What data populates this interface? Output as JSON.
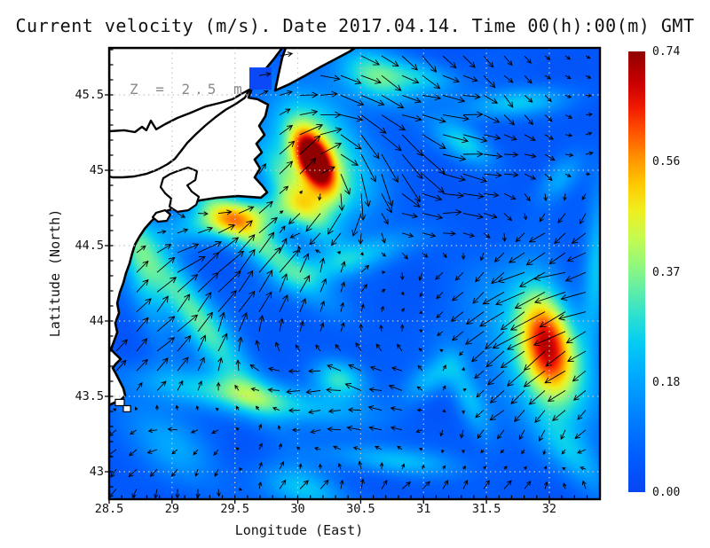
{
  "title": {
    "text": "Current velocity (m/s). Date 2017.04.14. Time 00(h):00(m) GMT"
  },
  "annotation": {
    "text": "Z = 2.5 m",
    "color": "#8a8a8a"
  },
  "axes": {
    "xlabel": "Longitude (East)",
    "ylabel": "Latitude (North)",
    "xlim": [
      28.5,
      32.4
    ],
    "ylim": [
      42.82,
      45.81
    ],
    "xtick_values": [
      28.5,
      29,
      29.5,
      30,
      30.5,
      31,
      31.5,
      32
    ],
    "xtick_labels": [
      "28.5",
      "29",
      "29.5",
      "30",
      "30.5",
      "31",
      "31.5",
      "32"
    ],
    "ytick_values": [
      43,
      43.5,
      44,
      44.5,
      45,
      45.5
    ],
    "ytick_labels": [
      "43",
      "43.5",
      "44",
      "44.5",
      "45",
      "45.5"
    ],
    "minor_tick_step": 0.1,
    "grid_style": "dotted"
  },
  "colorbar": {
    "vmin": 0.0,
    "vmax": 0.74,
    "tick_values": [
      0.74,
      0.555,
      0.37,
      0.185,
      0.0
    ],
    "tick_labels": [
      "0.74",
      "0.56",
      "0.37",
      "0.18",
      "0.00"
    ],
    "stops": [
      [
        0.0,
        "#0646f0"
      ],
      [
        0.09,
        "#0060ff"
      ],
      [
        0.18,
        "#0084ff"
      ],
      [
        0.27,
        "#00acff"
      ],
      [
        0.34,
        "#06ccf2"
      ],
      [
        0.4,
        "#2ce0d0"
      ],
      [
        0.46,
        "#62eea6"
      ],
      [
        0.52,
        "#96f878"
      ],
      [
        0.58,
        "#c8fa4e"
      ],
      [
        0.64,
        "#f0ee1e"
      ],
      [
        0.7,
        "#ffc800"
      ],
      [
        0.76,
        "#ff9000"
      ],
      [
        0.82,
        "#ff5000"
      ],
      [
        0.875,
        "#f01800"
      ],
      [
        0.93,
        "#c80000"
      ],
      [
        1.0,
        "#900000"
      ]
    ]
  },
  "colors": {
    "land": "#ffffff",
    "coast": "#000000",
    "water_patch": "#0a49f5",
    "arrow": "#000000",
    "grid": "#c8c8c8",
    "border": "#000000"
  },
  "chart_data": {
    "type": "heatmap+quiver",
    "quantity": "current speed",
    "units": "m/s",
    "depth": "2.5 m",
    "speed_base": 0.045,
    "speed_features": [
      [
        30.13,
        45.06,
        0.62,
        0.16,
        0.085,
        55
      ],
      [
        30.18,
        45.12,
        0.33,
        0.33,
        0.22,
        45
      ],
      [
        30.0,
        44.82,
        0.25,
        0.3,
        0.1,
        45
      ],
      [
        30.62,
        45.62,
        0.28,
        0.22,
        0.12,
        20
      ],
      [
        31.75,
        45.45,
        0.2,
        0.3,
        0.07,
        -5
      ],
      [
        31.0,
        45.62,
        0.18,
        0.2,
        0.08,
        10
      ],
      [
        31.32,
        45.18,
        0.22,
        0.18,
        0.08,
        25
      ],
      [
        32.08,
        44.95,
        0.15,
        0.15,
        0.08,
        -40
      ],
      [
        29.55,
        44.69,
        0.28,
        0.4,
        0.09,
        -8
      ],
      [
        29.65,
        44.55,
        0.3,
        0.5,
        0.1,
        35
      ],
      [
        29.15,
        44.08,
        0.3,
        0.55,
        0.11,
        48
      ],
      [
        29.6,
        43.5,
        0.26,
        0.6,
        0.09,
        8
      ],
      [
        30.32,
        43.62,
        0.25,
        0.15,
        0.09,
        10
      ],
      [
        31.98,
        43.87,
        0.48,
        0.28,
        0.15,
        75
      ],
      [
        31.9,
        43.75,
        0.2,
        0.45,
        0.25,
        45
      ],
      [
        28.75,
        44.3,
        0.16,
        0.35,
        0.1,
        70
      ],
      [
        30.45,
        44.42,
        0.18,
        0.35,
        0.08,
        -15
      ],
      [
        31.05,
        43.62,
        0.17,
        0.18,
        0.08,
        -30
      ],
      [
        31.35,
        43.5,
        0.17,
        0.22,
        0.08,
        60
      ],
      [
        30.75,
        43.08,
        0.19,
        0.35,
        0.07,
        5
      ],
      [
        30.05,
        42.88,
        0.19,
        0.25,
        0.1,
        15
      ],
      [
        32.38,
        44.4,
        0.2,
        0.35,
        0.08,
        -85
      ],
      [
        29.0,
        43.17,
        0.14,
        0.3,
        0.15,
        30
      ],
      [
        32.2,
        43.1,
        0.15,
        0.25,
        0.1,
        40
      ]
    ],
    "current_grid": {
      "lons": [
        28.6,
        28.975,
        29.35,
        29.725,
        30.1,
        30.475,
        30.85,
        31.225,
        31.6,
        31.975,
        32.35
      ],
      "lats": [
        45.75,
        45.39,
        45.04,
        44.68,
        44.33,
        43.97,
        43.61,
        43.26,
        42.9
      ],
      "u": [
        [
          0,
          0,
          0,
          0.15,
          0.2,
          0.22,
          0.18,
          0.15,
          0.1,
          0.06,
          0.05
        ],
        [
          0,
          0,
          0,
          0.08,
          0.22,
          0.3,
          0.25,
          0.3,
          0.12,
          0.08,
          0.06
        ],
        [
          0,
          0,
          0,
          0.02,
          0.35,
          0.1,
          0.25,
          0.28,
          0.2,
          0.12,
          0.08
        ],
        [
          0,
          0.08,
          0.15,
          0.2,
          -0.3,
          -0.1,
          0.2,
          0.25,
          0.1,
          -0.1,
          -0.12
        ],
        [
          0.1,
          0.25,
          0.3,
          0.25,
          0.05,
          0.08,
          0.0,
          -0.08,
          -0.15,
          -0.35,
          -0.28
        ],
        [
          0.12,
          0.2,
          0.1,
          0.05,
          0.08,
          0.03,
          0.02,
          -0.1,
          -0.25,
          -0.4,
          -0.25
        ],
        [
          0.1,
          0.15,
          0.05,
          -0.15,
          -0.2,
          -0.18,
          -0.15,
          0.1,
          -0.2,
          -0.2,
          -0.15
        ],
        [
          -0.1,
          -0.12,
          -0.08,
          0.05,
          -0.12,
          -0.15,
          -0.12,
          0.0,
          -0.1,
          -0.03,
          -0.12
        ],
        [
          -0.08,
          -0.02,
          0.0,
          0.03,
          0.08,
          0.02,
          0.1,
          0.03,
          0.1,
          0.02,
          -0.05
        ]
      ],
      "v": [
        [
          0,
          0,
          0,
          0.02,
          0.0,
          -0.12,
          -0.14,
          -0.15,
          -0.1,
          -0.05,
          -0.04
        ],
        [
          0,
          0,
          0,
          0.08,
          0.02,
          -0.12,
          -0.1,
          0.0,
          -0.12,
          -0.06,
          0.03
        ],
        [
          0,
          0,
          0,
          0.12,
          0.3,
          -0.45,
          -0.3,
          -0.05,
          0.0,
          -0.08,
          0.04
        ],
        [
          0,
          -0.05,
          0.03,
          0.15,
          -0.25,
          -0.25,
          -0.02,
          0.0,
          -0.08,
          -0.1,
          -0.15
        ],
        [
          0.1,
          0.2,
          0.25,
          0.3,
          0.2,
          0.1,
          -0.1,
          -0.08,
          -0.12,
          -0.15,
          -0.05
        ],
        [
          0.15,
          0.2,
          0.25,
          0.2,
          0.12,
          0.1,
          0.08,
          -0.1,
          -0.2,
          -0.25,
          -0.1
        ],
        [
          0.12,
          0.15,
          0.15,
          0.02,
          -0.02,
          0.05,
          0.05,
          0.1,
          -0.15,
          -0.18,
          -0.1
        ],
        [
          -0.08,
          0.0,
          -0.06,
          0.08,
          -0.02,
          0.0,
          0.02,
          -0.1,
          -0.1,
          -0.12,
          -0.1
        ],
        [
          -0.1,
          -0.12,
          -0.1,
          0.1,
          0.1,
          0.12,
          0.08,
          0.1,
          0.1,
          0.08,
          0.08
        ]
      ]
    },
    "coastline": {
      "land_polygons": [
        [
          [
            28.5,
            45.812
          ],
          [
            29.876,
            45.812
          ],
          [
            29.806,
            45.735
          ],
          [
            29.707,
            45.635
          ],
          [
            29.636,
            45.547
          ],
          [
            29.608,
            45.482
          ],
          [
            29.679,
            45.471
          ],
          [
            29.763,
            45.435
          ],
          [
            29.742,
            45.359
          ],
          [
            29.693,
            45.294
          ],
          [
            29.735,
            45.235
          ],
          [
            29.671,
            45.176
          ],
          [
            29.714,
            45.118
          ],
          [
            29.657,
            45.071
          ],
          [
            29.7,
            45.012
          ],
          [
            29.657,
            44.953
          ],
          [
            29.721,
            44.894
          ],
          [
            29.756,
            44.853
          ],
          [
            29.707,
            44.818
          ],
          [
            29.523,
            44.829
          ],
          [
            29.361,
            44.818
          ],
          [
            29.22,
            44.8
          ],
          [
            29.079,
            44.765
          ],
          [
            28.973,
            44.735
          ],
          [
            28.888,
            44.706
          ],
          [
            28.832,
            44.659
          ],
          [
            28.782,
            44.612
          ],
          [
            28.74,
            44.559
          ],
          [
            28.705,
            44.506
          ],
          [
            28.683,
            44.447
          ],
          [
            28.662,
            44.382
          ],
          [
            28.634,
            44.318
          ],
          [
            28.613,
            44.253
          ],
          [
            28.585,
            44.188
          ],
          [
            28.564,
            44.118
          ],
          [
            28.578,
            44.053
          ],
          [
            28.549,
            43.988
          ],
          [
            28.564,
            43.924
          ],
          [
            28.535,
            43.859
          ],
          [
            28.514,
            43.812
          ],
          [
            28.556,
            43.776
          ],
          [
            28.592,
            43.747
          ],
          [
            28.556,
            43.718
          ],
          [
            28.528,
            43.688
          ],
          [
            28.556,
            43.647
          ],
          [
            28.585,
            43.6
          ],
          [
            28.613,
            43.553
          ],
          [
            28.627,
            43.506
          ],
          [
            28.592,
            43.476
          ],
          [
            28.542,
            43.459
          ],
          [
            28.5,
            43.441
          ]
        ],
        [
          [
            29.904,
            45.812
          ],
          [
            30.455,
            45.812
          ],
          [
            30.413,
            45.788
          ],
          [
            30.307,
            45.741
          ],
          [
            30.187,
            45.688
          ],
          [
            30.06,
            45.629
          ],
          [
            29.933,
            45.571
          ],
          [
            29.82,
            45.529
          ],
          [
            29.848,
            45.641
          ],
          [
            29.876,
            45.747
          ]
        ],
        [
          [
            28.549,
            43.48
          ],
          [
            28.62,
            43.48
          ],
          [
            28.62,
            43.438
          ],
          [
            28.549,
            43.438
          ]
        ],
        [
          [
            28.613,
            43.438
          ],
          [
            28.67,
            43.438
          ],
          [
            28.67,
            43.398
          ],
          [
            28.613,
            43.398
          ]
        ]
      ],
      "water_patches": [
        {
          "lon_min": 29.615,
          "lon_max": 29.791,
          "lat_min": 45.535,
          "lat_max": 45.682
        }
      ],
      "lagoon_shore": [
        [
          28.5,
          45.259
        ],
        [
          28.62,
          45.265
        ],
        [
          28.705,
          45.253
        ],
        [
          28.761,
          45.288
        ],
        [
          28.796,
          45.265
        ],
        [
          28.832,
          45.329
        ],
        [
          28.874,
          45.271
        ],
        [
          28.945,
          45.306
        ],
        [
          29.043,
          45.347
        ],
        [
          29.149,
          45.382
        ],
        [
          29.269,
          45.424
        ],
        [
          29.382,
          45.447
        ],
        [
          29.481,
          45.471
        ],
        [
          29.551,
          45.506
        ],
        [
          29.615,
          45.535
        ],
        [
          29.58,
          45.482
        ],
        [
          29.509,
          45.441
        ],
        [
          29.424,
          45.4
        ],
        [
          29.347,
          45.353
        ],
        [
          29.269,
          45.3
        ],
        [
          29.192,
          45.241
        ],
        [
          29.121,
          45.182
        ],
        [
          29.072,
          45.129
        ],
        [
          29.022,
          45.076
        ],
        [
          28.966,
          45.041
        ],
        [
          28.888,
          45.006
        ],
        [
          28.796,
          44.976
        ],
        [
          28.698,
          44.959
        ],
        [
          28.606,
          44.953
        ],
        [
          28.528,
          44.953
        ],
        [
          28.5,
          44.959
        ]
      ],
      "lakes": [
        [
          [
            29.043,
            44.994
          ],
          [
            29.128,
            45.018
          ],
          [
            29.199,
            44.994
          ],
          [
            29.185,
            44.935
          ],
          [
            29.121,
            44.9
          ],
          [
            29.156,
            44.859
          ],
          [
            29.213,
            44.824
          ],
          [
            29.192,
            44.771
          ],
          [
            29.128,
            44.735
          ],
          [
            29.043,
            44.724
          ],
          [
            28.98,
            44.759
          ],
          [
            28.994,
            44.812
          ],
          [
            28.945,
            44.847
          ],
          [
            28.909,
            44.888
          ],
          [
            28.93,
            44.947
          ],
          [
            28.987,
            44.976
          ]
        ],
        [
          [
            28.874,
            44.718
          ],
          [
            28.945,
            44.735
          ],
          [
            28.987,
            44.706
          ],
          [
            28.959,
            44.665
          ],
          [
            28.888,
            44.659
          ],
          [
            28.846,
            44.688
          ]
        ]
      ]
    }
  }
}
